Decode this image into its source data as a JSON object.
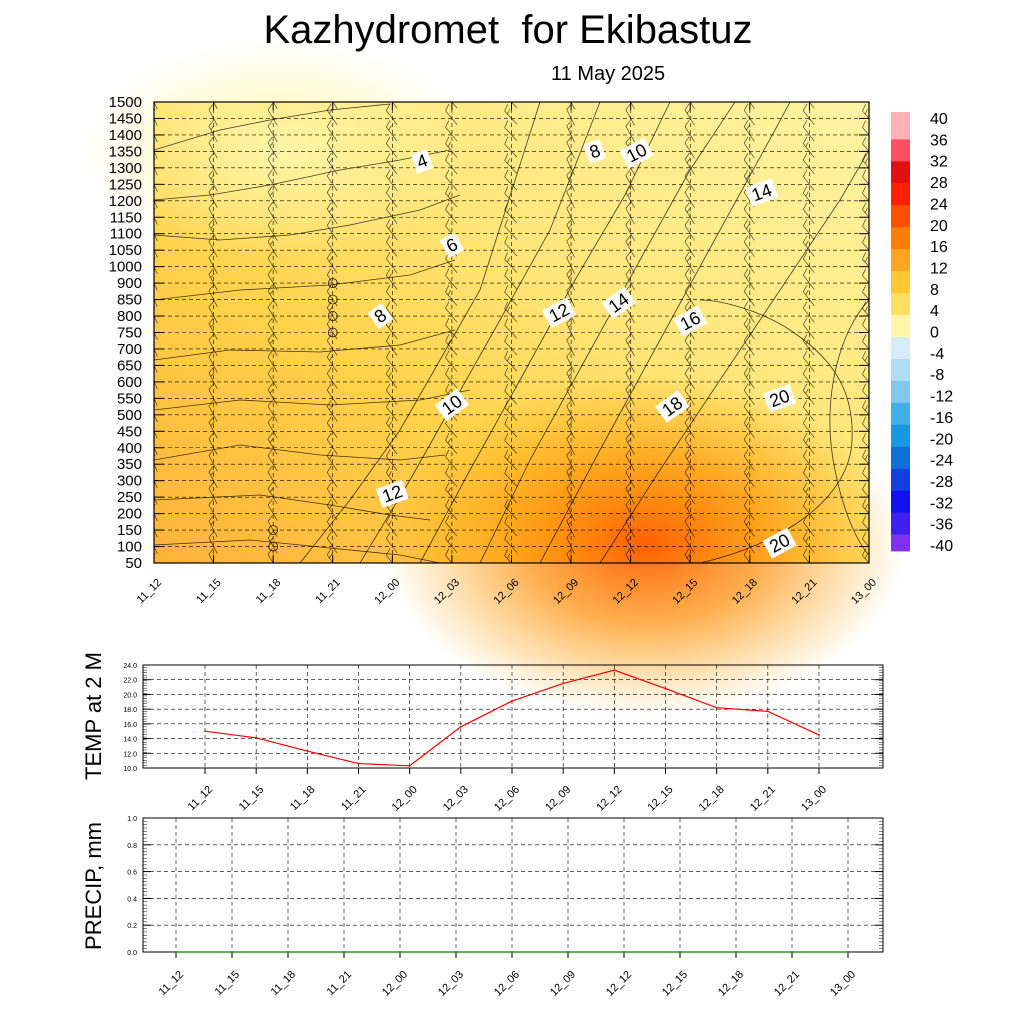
{
  "title": "Kazhydromet  for Ekibastuz",
  "subtitle": "11 May 2025",
  "time_labels": [
    "11_12",
    "11_15",
    "11_18",
    "11_21",
    "12_00",
    "12_03",
    "12_06",
    "12_09",
    "12_12",
    "12_15",
    "12_18",
    "12_21",
    "13_00"
  ],
  "colors": {
    "temp_line": "#ff0000",
    "precip_line": "#008000",
    "contour_line": "#000000"
  },
  "chart_data": [
    {
      "type": "heatmap",
      "name": "cross_section",
      "x": [
        "11_12",
        "11_15",
        "11_18",
        "11_21",
        "12_00",
        "12_03",
        "12_06",
        "12_09",
        "12_12",
        "12_15",
        "12_18",
        "12_21",
        "13_00"
      ],
      "y": [
        50,
        100,
        150,
        200,
        250,
        300,
        350,
        400,
        450,
        500,
        550,
        600,
        650,
        700,
        750,
        800,
        850,
        900,
        1000,
        1050,
        1100,
        1150,
        1200,
        1250,
        1300,
        1350,
        1400,
        1450,
        1500
      ],
      "y_tick_labels": [
        "1500",
        "1450",
        "1400",
        "1350",
        "1300",
        "1250",
        "1200",
        "1150",
        "1100",
        "1050",
        "1000",
        "900",
        "850",
        "800",
        "750",
        "700",
        "650",
        "600",
        "550",
        "500",
        "450",
        "400",
        "350",
        "300",
        "250",
        "200",
        "150",
        "100",
        "50"
      ],
      "colorbar": {
        "labels": [
          "40",
          "36",
          "32",
          "28",
          "24",
          "20",
          "16",
          "12",
          "8",
          "4",
          "0",
          "-4",
          "-8",
          "-12",
          "-16",
          "-20",
          "-24",
          "-28",
          "-32",
          "-36",
          "-40"
        ],
        "range": [
          -40,
          40
        ]
      },
      "contour_labels": [
        {
          "text": "4",
          "t": 4.5,
          "level": 1320
        },
        {
          "text": "6",
          "t": 5.0,
          "level": 1065
        },
        {
          "text": "8",
          "t": 3.8,
          "level": 800
        },
        {
          "text": "8",
          "t": 7.4,
          "level": 1350
        },
        {
          "text": "10",
          "t": 8.1,
          "level": 1345
        },
        {
          "text": "10",
          "t": 5.0,
          "level": 530
        },
        {
          "text": "12",
          "t": 4.0,
          "level": 260
        },
        {
          "text": "12",
          "t": 6.8,
          "level": 810
        },
        {
          "text": "14",
          "t": 7.8,
          "level": 840
        },
        {
          "text": "14",
          "t": 10.2,
          "level": 1225
        },
        {
          "text": "16",
          "t": 9.0,
          "level": 785
        },
        {
          "text": "18",
          "t": 8.7,
          "level": 525
        },
        {
          "text": "20",
          "t": 10.5,
          "level": 550
        },
        {
          "text": "20",
          "t": 10.5,
          "level": 110
        }
      ],
      "calm_markers": [
        {
          "t": 3,
          "level": 900
        },
        {
          "t": 3,
          "level": 850
        },
        {
          "t": 3,
          "level": 800
        },
        {
          "t": 3,
          "level": 750
        },
        {
          "t": 2,
          "level": 150
        },
        {
          "t": 2,
          "level": 100
        }
      ]
    },
    {
      "type": "line",
      "name": "temp_2m",
      "ylabel": "TEMP at 2 M",
      "x": [
        "11_12",
        "11_15",
        "11_18",
        "11_21",
        "12_00",
        "12_03",
        "12_06",
        "12_09",
        "12_12",
        "12_15",
        "12_18",
        "12_21",
        "13_00"
      ],
      "values": [
        15.0,
        14.1,
        12.3,
        10.6,
        10.3,
        15.6,
        19.1,
        21.5,
        23.3,
        20.8,
        18.2,
        17.7,
        14.5
      ],
      "ylim": [
        10,
        24
      ],
      "y_tick_labels": [
        "24.0",
        "22.0",
        "20.0",
        "18.0",
        "16.0",
        "14.0",
        "12.0",
        "10.0"
      ]
    },
    {
      "type": "line",
      "name": "precip",
      "ylabel": "PRECIP, mm",
      "x": [
        "11_12",
        "11_15",
        "11_18",
        "11_21",
        "12_00",
        "12_03",
        "12_06",
        "12_09",
        "12_12",
        "12_15",
        "12_18",
        "12_21",
        "13_00"
      ],
      "values": [
        0,
        0,
        0,
        0,
        0,
        0,
        0,
        0,
        0,
        0,
        0,
        0,
        0
      ],
      "ylim": [
        0,
        1
      ],
      "y_tick_labels": [
        "1.0",
        "0.8",
        "0.6",
        "0.4",
        "0.2",
        "0.0"
      ]
    }
  ]
}
